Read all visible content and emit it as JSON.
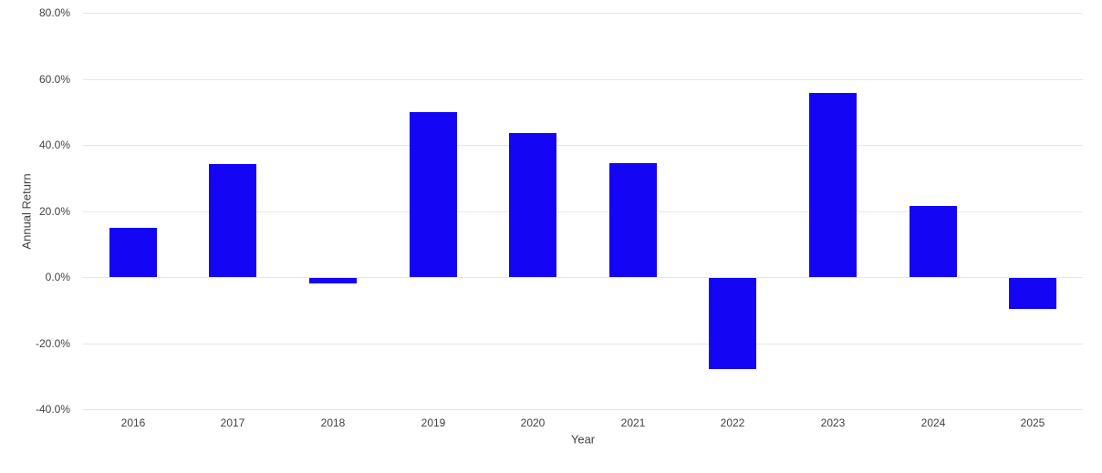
{
  "page": {
    "background": "#ffffff"
  },
  "chart_data": {
    "type": "bar",
    "title": "",
    "xlabel": "Year",
    "ylabel": "Annual Return",
    "categories": [
      "2016",
      "2017",
      "2018",
      "2019",
      "2020",
      "2021",
      "2022",
      "2023",
      "2024",
      "2025"
    ],
    "values": [
      14.8,
      34.1,
      -1.6,
      49.8,
      43.5,
      34.6,
      -27.7,
      55.8,
      21.5,
      -9.5
    ],
    "ylim": [
      -40,
      80
    ],
    "ytick_values": [
      80,
      60,
      40,
      20,
      0,
      -20,
      -40
    ],
    "ytick_labels": [
      "80.0%",
      "60.0%",
      "40.0%",
      "20.0%",
      "0.0%",
      "-20.0%",
      "-40.0%"
    ],
    "grid": true,
    "legend_position": "none",
    "bar_color": "#1405f5",
    "grid_color": "#e6e6e6",
    "text_color": "#424242"
  }
}
